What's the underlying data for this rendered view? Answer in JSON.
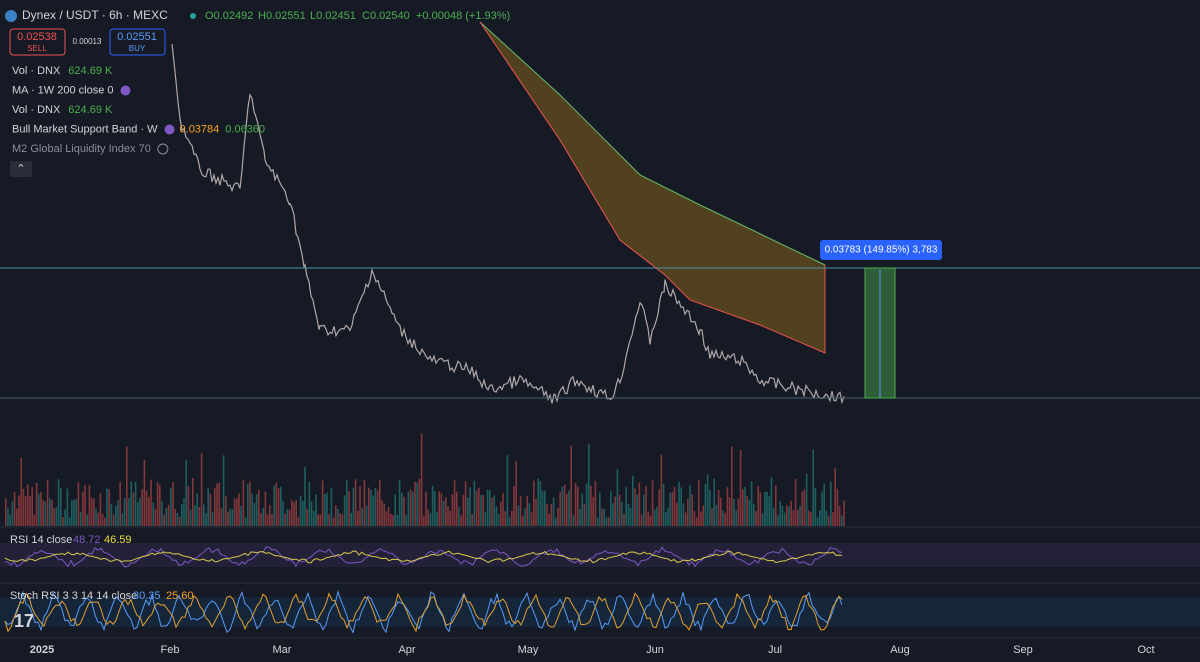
{
  "header": {
    "symbol": "Dynex / USDT · 6h · MEXC",
    "open": "O0.02492",
    "high": "H0.02551",
    "low": "L0.02451",
    "close": "C0.02540",
    "change": "+0.00048 (+1.93%)"
  },
  "trade": {
    "sell_price": "0.02538",
    "sell_label": "SELL",
    "spread": "0.00013",
    "buy_price": "0.02551",
    "buy_label": "BUY"
  },
  "indicators": [
    {
      "name": "Vol · DNX",
      "values": [
        "624.69 K"
      ]
    },
    {
      "name": "MA · 1W 200 close 0",
      "values": []
    },
    {
      "name": "Vol · DNX",
      "values": [
        "624.69 K"
      ]
    },
    {
      "name": "Bull Market Support Band · W",
      "values": [
        "0.03784",
        "0.06360"
      ]
    },
    {
      "name": "M2 Global Liquidity Index 70",
      "values": []
    }
  ],
  "measure": {
    "label": "0.03783 (149.85%) 3,783"
  },
  "rsi": {
    "name": "RSI 14 close",
    "values": [
      "48.72",
      "46.59"
    ]
  },
  "stoch": {
    "name": "Stoch RSI 3 3 14 14 close",
    "values": [
      "30.35",
      "25.60"
    ]
  },
  "x_axis": [
    "2025",
    "Feb",
    "Mar",
    "Apr",
    "May",
    "Jun",
    "Jul",
    "Aug",
    "Sep",
    "Oct"
  ]
}
